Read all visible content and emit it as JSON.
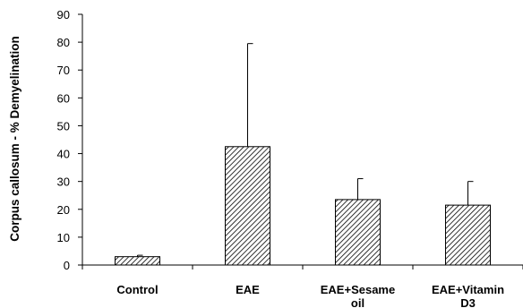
{
  "chart_data": {
    "type": "bar",
    "title": "",
    "xlabel": "",
    "ylabel": "Corpus callosum  - % Demyelination",
    "categories": [
      [
        "Control"
      ],
      [
        "EAE"
      ],
      [
        "EAE+Sesame",
        "oil"
      ],
      [
        "EAE+Vitamin",
        "D3"
      ]
    ],
    "values": [
      3,
      42.5,
      23.5,
      21.5
    ],
    "error_upper": [
      3.5,
      79.5,
      31,
      30
    ],
    "ylim": [
      0,
      90
    ],
    "yticks": [
      "0",
      "10",
      "20",
      "30",
      "40",
      "50",
      "60",
      "70",
      "80",
      "90"
    ],
    "grid": false,
    "legend": "none",
    "bar_fill": "diagonal-hatch",
    "colors": {
      "bar_stroke": "#000000",
      "hatch": "#000000",
      "background": "#ffffff"
    }
  }
}
